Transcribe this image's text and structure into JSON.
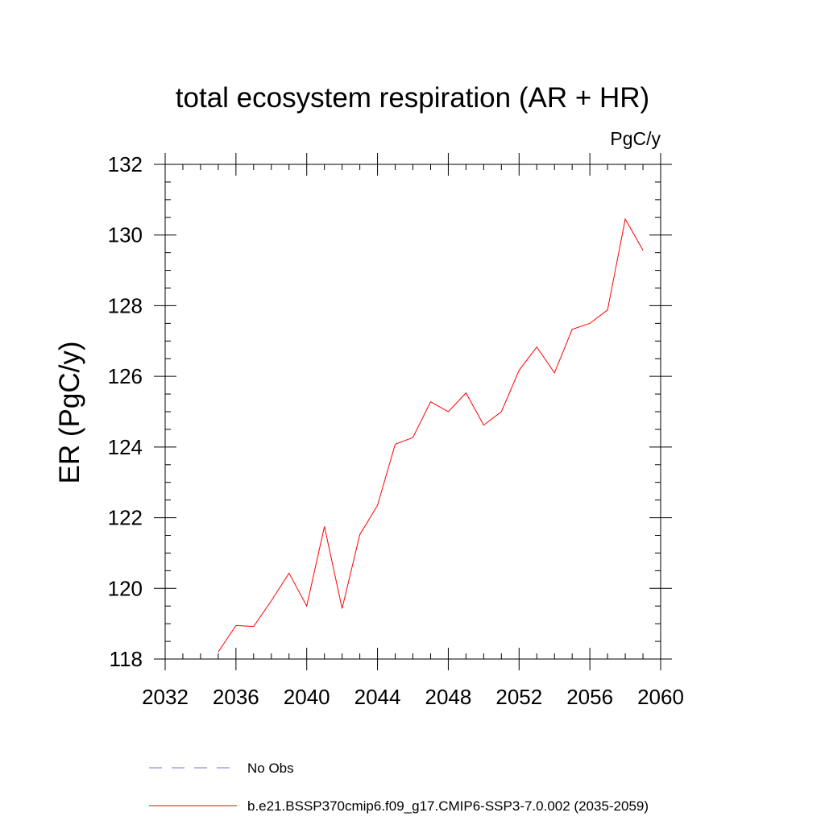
{
  "chart_data": {
    "type": "line",
    "title": "total ecosystem respiration (AR + HR)",
    "units": "PgC/y",
    "xlabel": "",
    "ylabel": "ER  (PgC/y)",
    "xlim": [
      2032,
      2060
    ],
    "ylim": [
      118,
      132
    ],
    "xticks": [
      2032,
      2036,
      2040,
      2044,
      2048,
      2052,
      2056,
      2060
    ],
    "yticks": [
      118,
      120,
      122,
      124,
      126,
      128,
      130,
      132
    ],
    "x_minor_step": 1,
    "y_minor_step": 0.5,
    "grid": false,
    "legend_position": "bottom",
    "series": [
      {
        "name": "b.e21.BSSP370cmip6.f09_g17.CMIP6-SSP3-7.0.002 (2035-2059)",
        "color": "#ff0000",
        "line_style": "solid",
        "x": [
          2035,
          2036,
          2037,
          2038,
          2039,
          2040,
          2041,
          2042,
          2043,
          2044,
          2045,
          2046,
          2047,
          2048,
          2049,
          2050,
          2051,
          2052,
          2053,
          2054,
          2055,
          2056,
          2057,
          2058,
          2059
        ],
        "values": [
          118.2,
          118.95,
          118.92,
          119.65,
          120.43,
          119.5,
          121.75,
          119.43,
          121.52,
          122.35,
          124.08,
          124.27,
          125.28,
          125.0,
          125.53,
          124.62,
          125.0,
          126.17,
          126.83,
          126.1,
          127.33,
          127.5,
          127.88,
          130.45,
          129.57
        ]
      },
      {
        "name": "No Obs",
        "color": "#7b73cc",
        "line_style": "dashed",
        "x": [],
        "values": []
      }
    ]
  }
}
